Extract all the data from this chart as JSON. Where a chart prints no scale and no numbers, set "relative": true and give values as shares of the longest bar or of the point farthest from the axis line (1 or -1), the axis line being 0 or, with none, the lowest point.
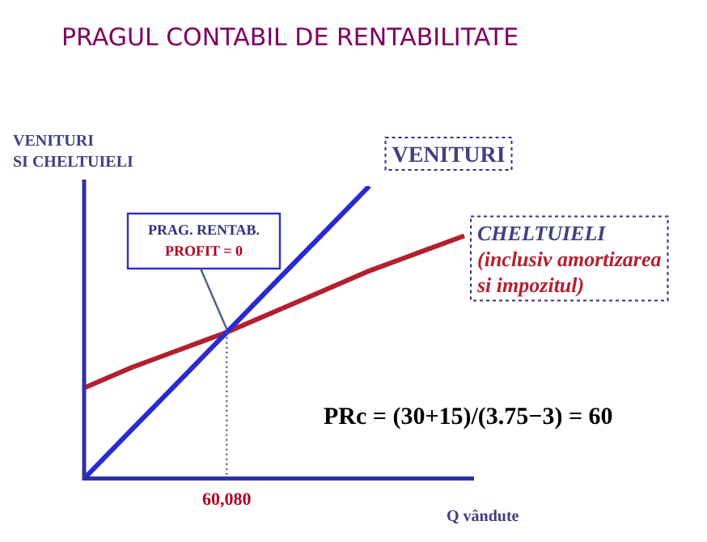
{
  "chart_data": {
    "type": "line",
    "title": "PRAGUL CONTABIL DE RENTABILITATE",
    "xlabel": "Q vândute",
    "ylabel": "VENITURI\nSI CHELTUIELI",
    "relative": true,
    "grid": false,
    "legend": false,
    "marker": "none",
    "line_style": "solid",
    "categories": [
      null,
      null,
      null,
      null,
      null,
      null,
      null,
      null,
      null
    ],
    "series": [
      {
        "name": "VENITURI",
        "color": "#2a2ad0",
        "values": [
          0,
          0.167,
          0.333,
          0.5,
          0.667,
          0.833,
          1,
          null,
          null
        ]
      },
      {
        "name": "CHELTUIELI\n(inclusiv amortizarea\nsi impozitul)",
        "color": "#b22030",
        "values": [
          0.31,
          0.38,
          0.44,
          0.5,
          0.57,
          0.64,
          0.71,
          0.77,
          0.83
        ]
      }
    ],
    "annotations": [
      "PRAG. RENTAB.\nPROFIT = 0",
      "PRc = (30+15)/(3.75−3) = 60",
      "60,080"
    ]
  }
}
